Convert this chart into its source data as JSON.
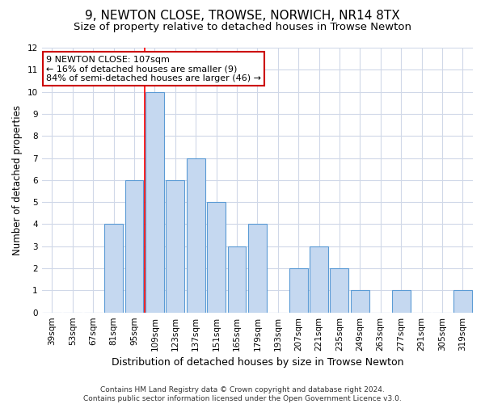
{
  "title": "9, NEWTON CLOSE, TROWSE, NORWICH, NR14 8TX",
  "subtitle": "Size of property relative to detached houses in Trowse Newton",
  "xlabel": "Distribution of detached houses by size in Trowse Newton",
  "ylabel": "Number of detached properties",
  "categories": [
    "39sqm",
    "53sqm",
    "67sqm",
    "81sqm",
    "95sqm",
    "109sqm",
    "123sqm",
    "137sqm",
    "151sqm",
    "165sqm",
    "179sqm",
    "193sqm",
    "207sqm",
    "221sqm",
    "235sqm",
    "249sqm",
    "263sqm",
    "277sqm",
    "291sqm",
    "305sqm",
    "319sqm"
  ],
  "values": [
    0,
    0,
    0,
    4,
    6,
    10,
    6,
    7,
    5,
    3,
    4,
    0,
    2,
    3,
    2,
    1,
    0,
    1,
    0,
    0,
    1
  ],
  "bar_color": "#c5d8f0",
  "bar_edge_color": "#5b9bd5",
  "red_line_index": 5,
  "ylim": [
    0,
    12
  ],
  "yticks": [
    0,
    1,
    2,
    3,
    4,
    5,
    6,
    7,
    8,
    9,
    10,
    11,
    12
  ],
  "annotation_text": "9 NEWTON CLOSE: 107sqm\n← 16% of detached houses are smaller (9)\n84% of semi-detached houses are larger (46) →",
  "annotation_box_color": "#ffffff",
  "annotation_box_edge_color": "#cc0000",
  "footnote1": "Contains HM Land Registry data © Crown copyright and database right 2024.",
  "footnote2": "Contains public sector information licensed under the Open Government Licence v3.0.",
  "background_color": "#ffffff",
  "grid_color": "#d0d8e8",
  "title_fontsize": 11,
  "subtitle_fontsize": 9.5,
  "ylabel_fontsize": 8.5,
  "xlabel_fontsize": 9,
  "tick_fontsize": 7.5,
  "annotation_fontsize": 8,
  "footnote_fontsize": 6.5
}
